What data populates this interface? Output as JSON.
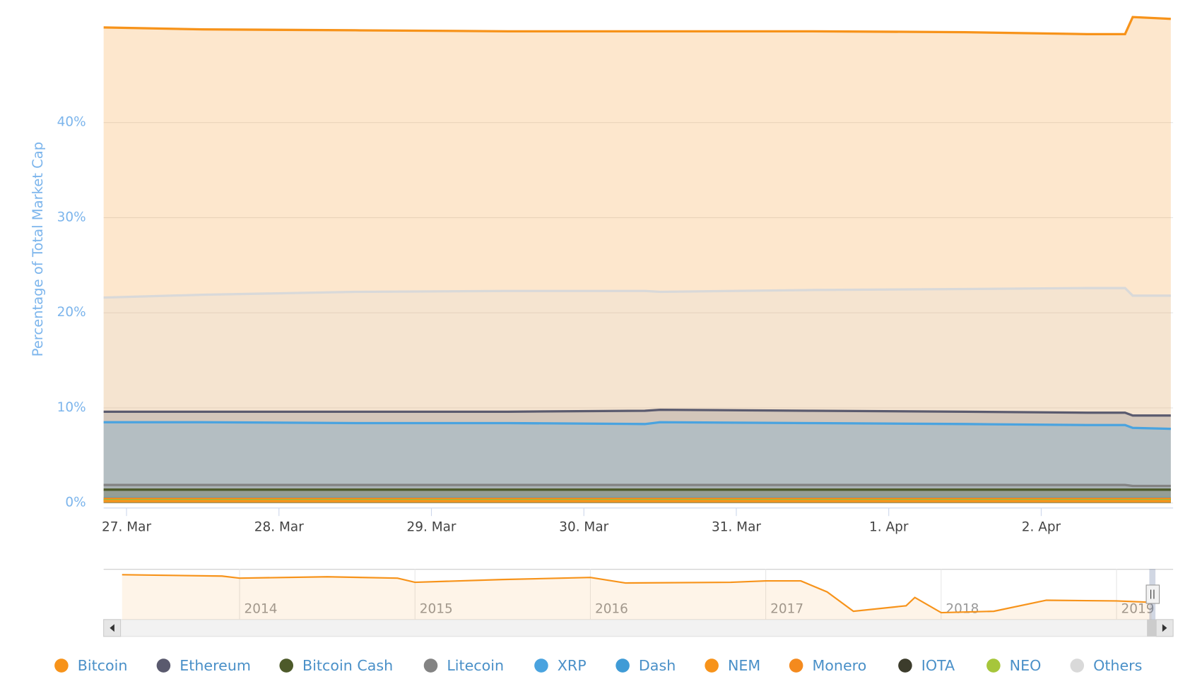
{
  "chart_data": {
    "type": "area",
    "y_axis_label": "Percentage of Total Market Cap",
    "x": [
      -0.15,
      0.5,
      1.5,
      2.5,
      3.4,
      3.5,
      4.5,
      5.5,
      6.3,
      6.55,
      6.6,
      6.85
    ],
    "xlim": [
      -0.15,
      6.85
    ],
    "xticks": [
      {
        "value": 0,
        "label": "27. Mar"
      },
      {
        "value": 1,
        "label": "28. Mar"
      },
      {
        "value": 2,
        "label": "29. Mar"
      },
      {
        "value": 3,
        "label": "30. Mar"
      },
      {
        "value": 4,
        "label": "31. Mar"
      },
      {
        "value": 5,
        "label": "1. Apr"
      },
      {
        "value": 6,
        "label": "2. Apr"
      }
    ],
    "ylim": [
      0,
      52
    ],
    "yticks": [
      {
        "value": 0,
        "label": "0%"
      },
      {
        "value": 10,
        "label": "10%"
      },
      {
        "value": 20,
        "label": "20%"
      },
      {
        "value": 30,
        "label": "30%"
      },
      {
        "value": 40,
        "label": "40%"
      }
    ],
    "grid": true,
    "series": [
      {
        "name": "Bitcoin",
        "color": "#f7931a",
        "values": [
          50.0,
          49.8,
          49.7,
          49.6,
          49.6,
          49.6,
          49.6,
          49.5,
          49.3,
          49.3,
          51.1,
          50.9
        ]
      },
      {
        "name": "Ethereum",
        "color": "#5a5a6e",
        "values": [
          9.6,
          9.6,
          9.6,
          9.6,
          9.7,
          9.8,
          9.7,
          9.6,
          9.5,
          9.5,
          9.2,
          9.2
        ]
      },
      {
        "name": "Bitcoin Cash",
        "color": "#4d5a2a",
        "values": [
          1.4,
          1.4,
          1.4,
          1.4,
          1.4,
          1.4,
          1.4,
          1.4,
          1.4,
          1.4,
          1.4,
          1.4
        ]
      },
      {
        "name": "Litecoin",
        "color": "#838383",
        "values": [
          1.9,
          1.9,
          1.9,
          1.9,
          1.9,
          1.9,
          1.9,
          1.9,
          1.9,
          1.9,
          1.8,
          1.8
        ]
      },
      {
        "name": "XRP",
        "color": "#4aa3df",
        "values": [
          8.5,
          8.5,
          8.4,
          8.4,
          8.3,
          8.5,
          8.4,
          8.3,
          8.2,
          8.2,
          7.9,
          7.8
        ]
      },
      {
        "name": "Dash",
        "color": "#3f9bd6",
        "values": [
          0.5,
          0.5,
          0.5,
          0.5,
          0.5,
          0.5,
          0.5,
          0.5,
          0.5,
          0.5,
          0.5,
          0.5
        ]
      },
      {
        "name": "NEM",
        "color": "#f7931a",
        "values": [
          0.2,
          0.2,
          0.2,
          0.2,
          0.2,
          0.2,
          0.2,
          0.2,
          0.2,
          0.2,
          0.2,
          0.2
        ]
      },
      {
        "name": "Monero",
        "color": "#f48a1e",
        "values": [
          0.45,
          0.45,
          0.45,
          0.45,
          0.45,
          0.45,
          0.45,
          0.45,
          0.45,
          0.45,
          0.45,
          0.45
        ]
      },
      {
        "name": "IOTA",
        "color": "#3c3c2c",
        "values": [
          0.3,
          0.3,
          0.3,
          0.3,
          0.3,
          0.3,
          0.3,
          0.3,
          0.3,
          0.3,
          0.3,
          0.3
        ]
      },
      {
        "name": "NEO",
        "color": "#a6c63b",
        "values": [
          0.3,
          0.3,
          0.3,
          0.3,
          0.3,
          0.3,
          0.3,
          0.3,
          0.3,
          0.3,
          0.3,
          0.3
        ]
      },
      {
        "name": "Others",
        "color": "#d9d9d9",
        "values": [
          21.6,
          21.9,
          22.2,
          22.3,
          22.3,
          22.2,
          22.4,
          22.5,
          22.6,
          22.6,
          21.8,
          21.8
        ]
      }
    ],
    "navigator": {
      "color": "#f7931a",
      "x": [
        2013.33,
        2013.9,
        2014.0,
        2014.5,
        2014.9,
        2015.0,
        2015.5,
        2016.0,
        2016.2,
        2016.8,
        2017.0,
        2017.2,
        2017.35,
        2017.5,
        2017.8,
        2017.85,
        2018.0,
        2018.3,
        2018.6,
        2019.0,
        2019.2
      ],
      "values": [
        95,
        93,
        90,
        92,
        90,
        84,
        88,
        91,
        83,
        84,
        86,
        86,
        70,
        42,
        50,
        62,
        40,
        42,
        58,
        57,
        55
      ],
      "xlim": [
        2013.33,
        2019.2
      ],
      "ylim": [
        30,
        100
      ],
      "xticks": [
        2014,
        2015,
        2016,
        2017,
        2018,
        2019
      ]
    }
  }
}
